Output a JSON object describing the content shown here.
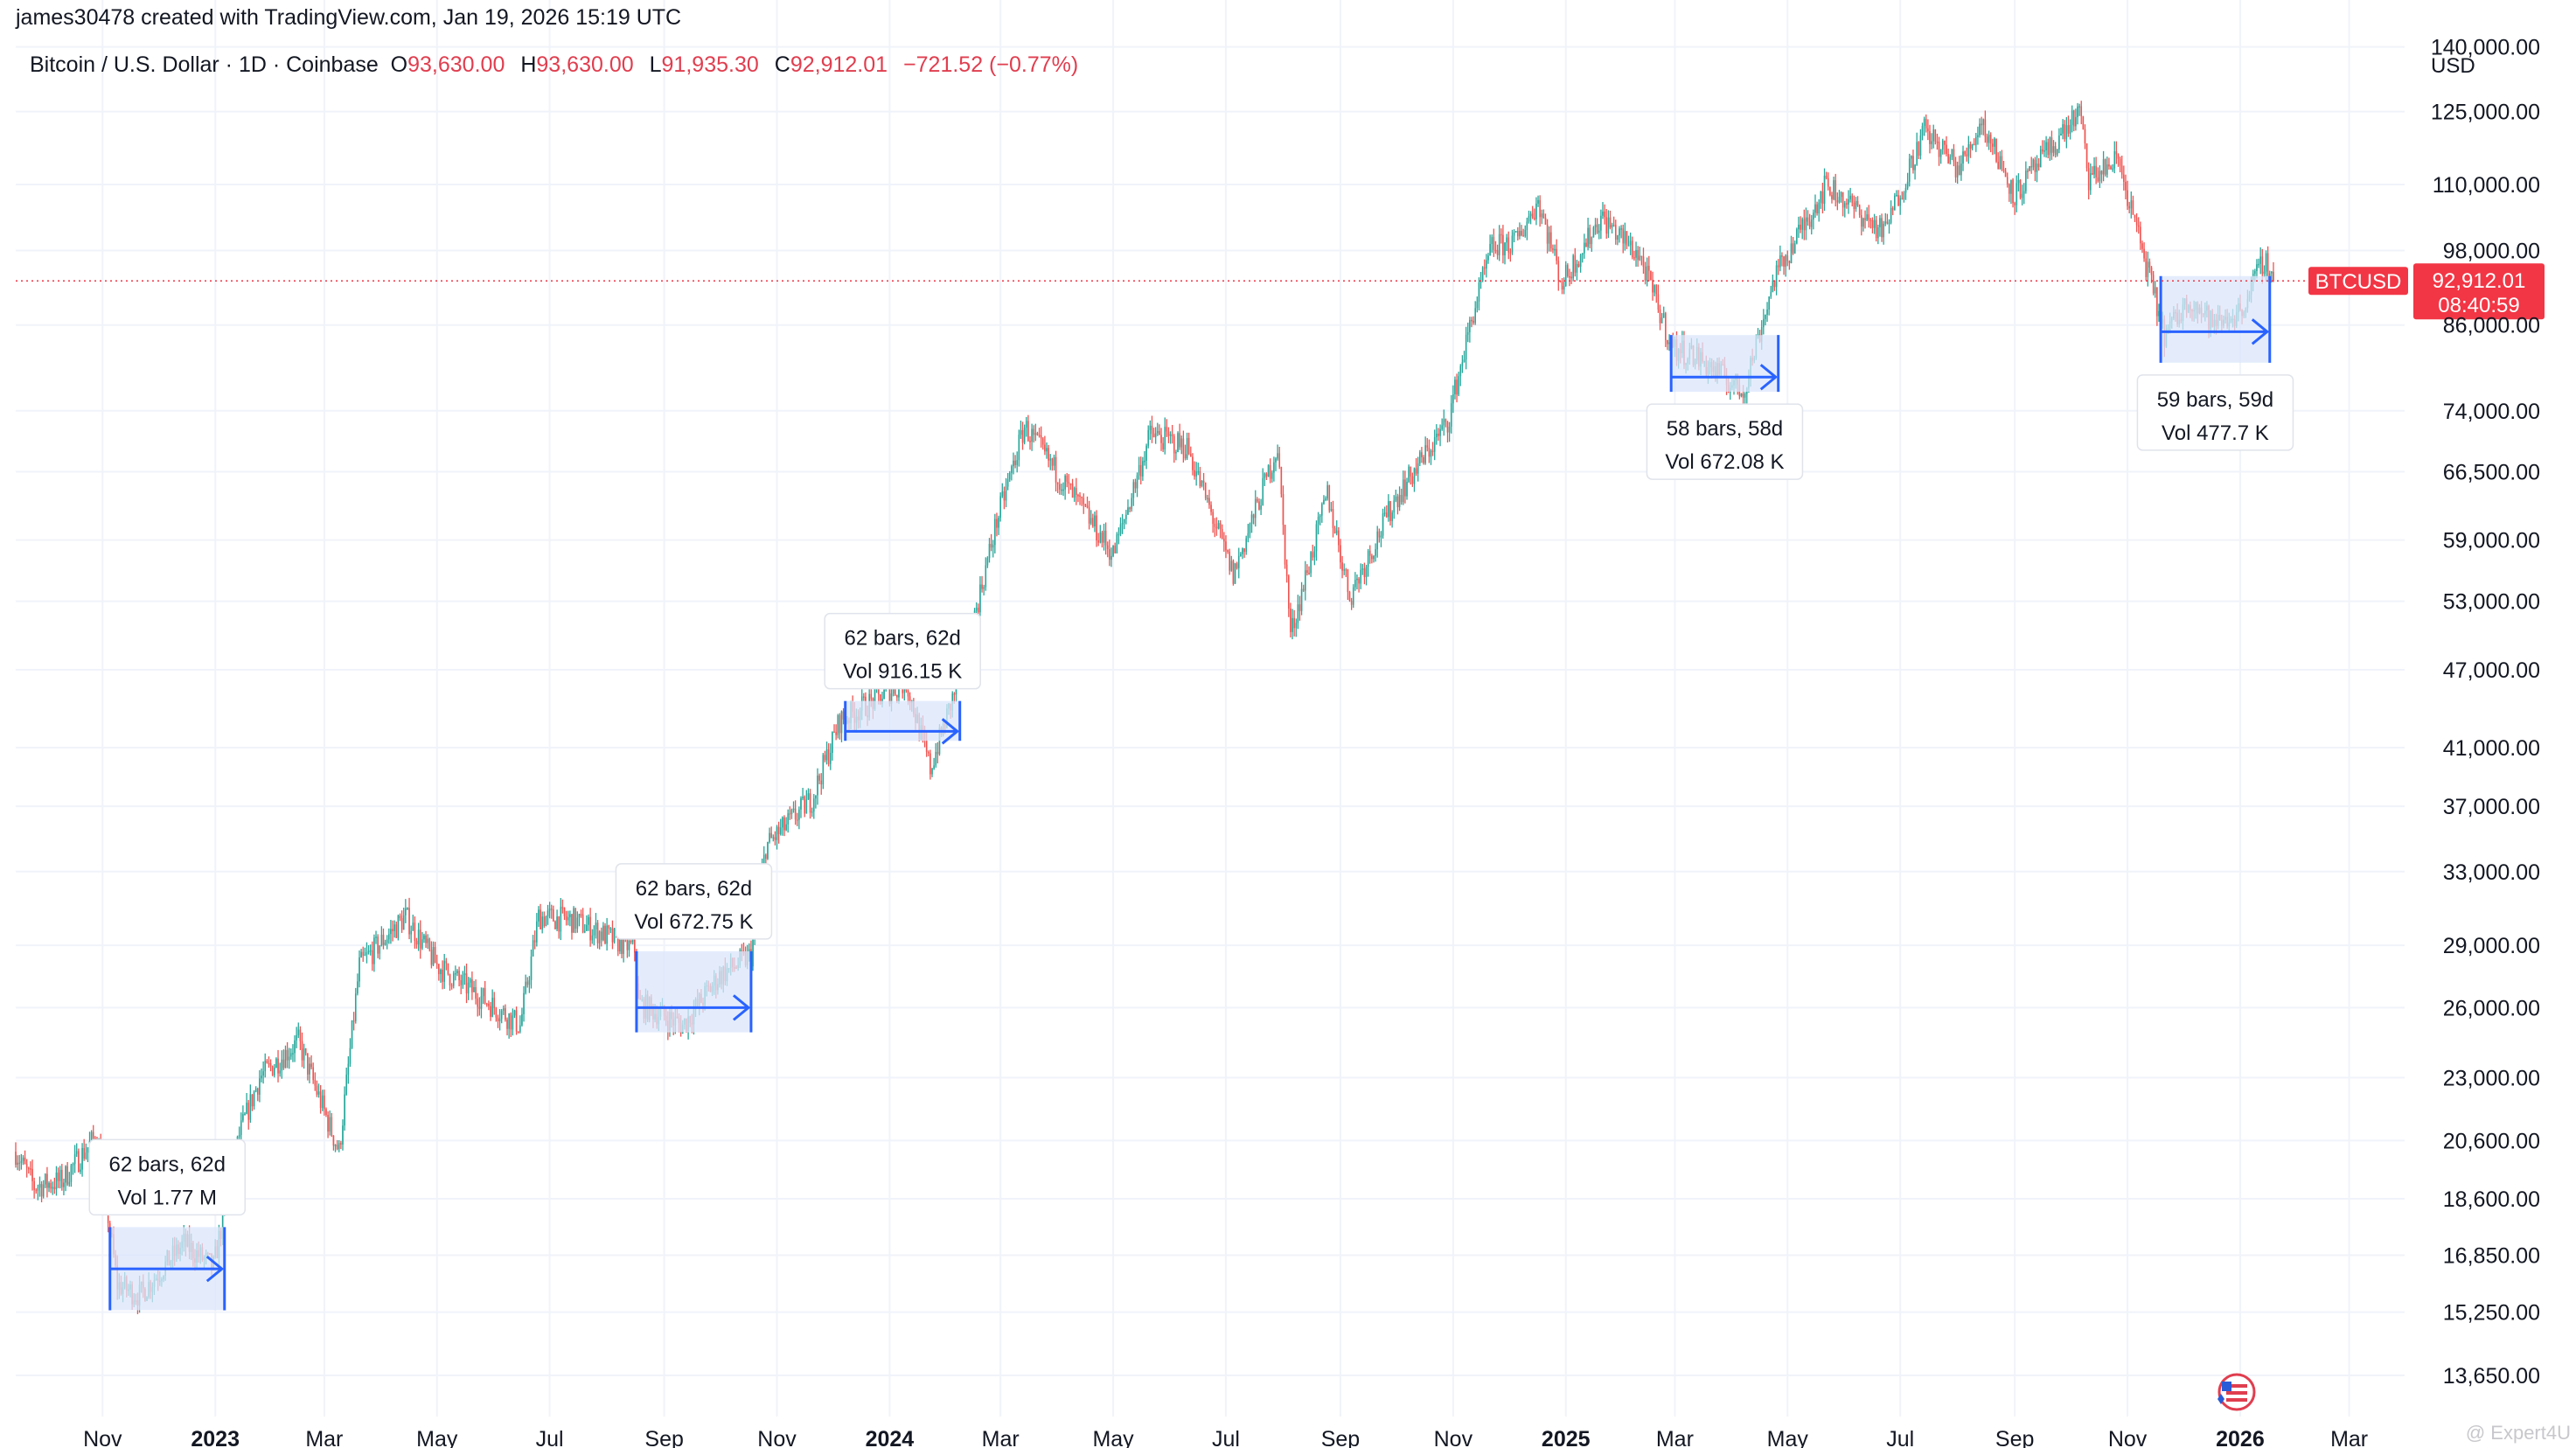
{
  "header": {
    "credit": "james30478 created with TradingView.com, Jan 19, 2026 15:19 UTC",
    "symbol": "Bitcoin / U.S. Dollar · 1D · Coinbase",
    "open_key": "O",
    "open": "93,630.00",
    "high_key": "H",
    "high": "93,630.00",
    "low_key": "L",
    "low": "91,935.30",
    "close_key": "C",
    "close": "92,912.01",
    "change": "−721.52 (−0.77%)",
    "currency": "USD"
  },
  "price_tag": {
    "symbol": "BTCUSD",
    "price": "92,912.01",
    "countdown": "08:40:59",
    "value": 92912.01
  },
  "watermark": "@ Expert4U",
  "colors": {
    "up": "#26a69a",
    "down": "#ef5350",
    "range_box": "#dbe5fb",
    "range_line": "#2962ff",
    "grid": "#f0f3fa",
    "price_line": "#f23645"
  },
  "chart_data": {
    "type": "candlestick",
    "scale": "log",
    "x_range": [
      "2022-09-15",
      "2026-03-31"
    ],
    "y_range": [
      12700,
      152000
    ],
    "y_ticks": [
      140000,
      125000,
      110000,
      98000,
      86000,
      74000,
      66500,
      59000,
      53000,
      47000,
      41000,
      37000,
      33000,
      29000,
      26000,
      23000,
      20600,
      18600,
      16850,
      15250,
      13650
    ],
    "y_tick_labels": [
      "140,000.00",
      "125,000.00",
      "110,000.00",
      "98,000.00",
      "86,000.00",
      "74,000.00",
      "66,500.00",
      "59,000.00",
      "53,000.00",
      "47,000.00",
      "41,000.00",
      "37,000.00",
      "33,000.00",
      "29,000.00",
      "26,000.00",
      "23,000.00",
      "20,600.00",
      "18,600.00",
      "16,850.00",
      "15,250.00",
      "13,650.00"
    ],
    "x_ticks": [
      {
        "label": "Nov",
        "date": "2022-11-01",
        "bold": false
      },
      {
        "label": "2023",
        "date": "2023-01-01",
        "bold": true
      },
      {
        "label": "Mar",
        "date": "2023-03-01",
        "bold": false
      },
      {
        "label": "May",
        "date": "2023-05-01",
        "bold": false
      },
      {
        "label": "Jul",
        "date": "2023-07-01",
        "bold": false
      },
      {
        "label": "Sep",
        "date": "2023-09-01",
        "bold": false
      },
      {
        "label": "Nov",
        "date": "2023-11-01",
        "bold": false
      },
      {
        "label": "2024",
        "date": "2024-01-01",
        "bold": true
      },
      {
        "label": "Mar",
        "date": "2024-03-01",
        "bold": false
      },
      {
        "label": "May",
        "date": "2024-05-01",
        "bold": false
      },
      {
        "label": "Jul",
        "date": "2024-07-01",
        "bold": false
      },
      {
        "label": "Sep",
        "date": "2024-09-01",
        "bold": false
      },
      {
        "label": "Nov",
        "date": "2024-11-01",
        "bold": false
      },
      {
        "label": "2025",
        "date": "2025-01-01",
        "bold": true
      },
      {
        "label": "Mar",
        "date": "2025-03-01",
        "bold": false
      },
      {
        "label": "May",
        "date": "2025-05-01",
        "bold": false
      },
      {
        "label": "Jul",
        "date": "2025-07-01",
        "bold": false
      },
      {
        "label": "Sep",
        "date": "2025-09-01",
        "bold": false
      },
      {
        "label": "Nov",
        "date": "2025-11-01",
        "bold": false
      },
      {
        "label": "2026",
        "date": "2026-01-01",
        "bold": true
      },
      {
        "label": "Mar",
        "date": "2026-03-01",
        "bold": false
      }
    ],
    "price_path": [
      [
        "2022-09-15",
        20200
      ],
      [
        "2022-09-25",
        19000
      ],
      [
        "2022-10-10",
        19200
      ],
      [
        "2022-10-29",
        20800
      ],
      [
        "2022-11-09",
        16000
      ],
      [
        "2022-11-21",
        15700
      ],
      [
        "2022-12-15",
        17200
      ],
      [
        "2022-12-31",
        16500
      ],
      [
        "2023-01-14",
        20800
      ],
      [
        "2023-01-25",
        23000
      ],
      [
        "2023-02-15",
        24500
      ],
      [
        "2023-03-09",
        20200
      ],
      [
        "2023-03-20",
        28000
      ],
      [
        "2023-04-14",
        30500
      ],
      [
        "2023-05-01",
        28000
      ],
      [
        "2023-06-15",
        25200
      ],
      [
        "2023-06-25",
        30500
      ],
      [
        "2023-07-14",
        30300
      ],
      [
        "2023-08-16",
        28800
      ],
      [
        "2023-08-18",
        26200
      ],
      [
        "2023-09-11",
        25200
      ],
      [
        "2023-10-01",
        27500
      ],
      [
        "2023-10-18",
        28500
      ],
      [
        "2023-10-26",
        34500
      ],
      [
        "2023-11-20",
        37500
      ],
      [
        "2023-12-05",
        43000
      ],
      [
        "2024-01-10",
        46000
      ],
      [
        "2024-01-23",
        39500
      ],
      [
        "2024-02-10",
        47500
      ],
      [
        "2024-02-28",
        61000
      ],
      [
        "2024-03-14",
        72000
      ],
      [
        "2024-04-17",
        61500
      ],
      [
        "2024-05-01",
        57500
      ],
      [
        "2024-05-21",
        71000
      ],
      [
        "2024-06-10",
        69500
      ],
      [
        "2024-07-05",
        55500
      ],
      [
        "2024-07-29",
        69500
      ],
      [
        "2024-08-05",
        50000
      ],
      [
        "2024-08-25",
        64000
      ],
      [
        "2024-09-06",
        53500
      ],
      [
        "2024-10-01",
        63500
      ],
      [
        "2024-10-29",
        72500
      ],
      [
        "2024-11-12",
        88000
      ],
      [
        "2024-11-22",
        98500
      ],
      [
        "2024-12-05",
        99500
      ],
      [
        "2024-12-17",
        107000
      ],
      [
        "2024-12-30",
        92500
      ],
      [
        "2025-01-20",
        104000
      ],
      [
        "2025-02-10",
        97000
      ],
      [
        "2025-02-28",
        82500
      ],
      [
        "2025-03-12",
        81500
      ],
      [
        "2025-04-07",
        76500
      ],
      [
        "2025-04-24",
        93500
      ],
      [
        "2025-05-22",
        110000
      ],
      [
        "2025-06-22",
        101000
      ],
      [
        "2025-07-14",
        121000
      ],
      [
        "2025-08-02",
        113000
      ],
      [
        "2025-08-14",
        123000
      ],
      [
        "2025-09-01",
        108000
      ],
      [
        "2025-10-06",
        125000
      ],
      [
        "2025-10-11",
        111000
      ],
      [
        "2025-10-27",
        115000
      ],
      [
        "2025-11-21",
        84500
      ],
      [
        "2025-12-05",
        90000
      ],
      [
        "2025-12-18",
        86000
      ],
      [
        "2026-01-01",
        88000
      ],
      [
        "2026-01-14",
        96500
      ],
      [
        "2026-01-19",
        92912
      ]
    ],
    "ranges": [
      {
        "start": "2022-11-05",
        "end": "2023-01-06",
        "low": 15300,
        "high": 17700,
        "mid": 16450,
        "text": "62 bars, 62d",
        "vol": "Vol 1.77 M",
        "label_pos": "above"
      },
      {
        "start": "2023-08-17",
        "end": "2023-10-18",
        "low": 24900,
        "high": 28700,
        "mid": 26000,
        "text": "62 bars, 62d",
        "vol": "Vol 672.75 K",
        "label_pos": "above"
      },
      {
        "start": "2023-12-08",
        "end": "2024-02-08",
        "low": 41500,
        "high": 44500,
        "mid": 42200,
        "text": "62 bars, 62d",
        "vol": "Vol 916.15 K",
        "label_pos": "above"
      },
      {
        "start": "2025-02-27",
        "end": "2025-04-26",
        "low": 76500,
        "high": 84500,
        "mid": 78500,
        "text": "58 bars, 58d",
        "vol": "Vol 672.08 K",
        "label_pos": "below"
      },
      {
        "start": "2025-11-19",
        "end": "2026-01-17",
        "low": 80500,
        "high": 93700,
        "mid": 85000,
        "text": "59 bars, 59d",
        "vol": "Vol 477.7 K",
        "label_pos": "below"
      }
    ]
  }
}
